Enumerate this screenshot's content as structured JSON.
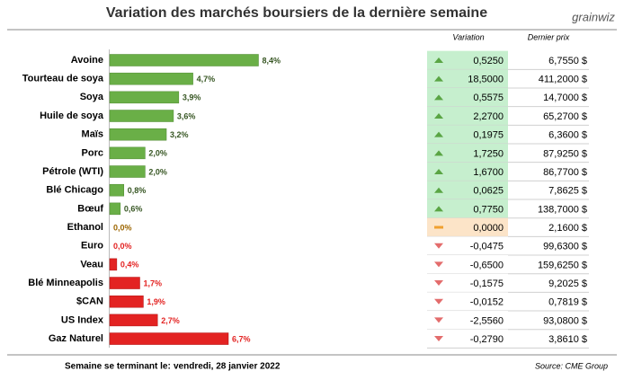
{
  "chart_data": {
    "type": "bar",
    "title": "Variation des marchés boursiers de la dernière semaine",
    "logo": "grainwiz",
    "categories": [
      "Avoine",
      "Tourteau de soya",
      "Soya",
      "Huile de soya",
      "Maïs",
      "Porc",
      "Pétrole (WTI)",
      "Blé Chicago",
      "Bœuf",
      "Ethanol",
      "Euro",
      "Veau",
      "Blé Minneapolis",
      "$CAN",
      "US Index",
      "Gaz Naturel"
    ],
    "values": [
      8.4,
      4.7,
      3.9,
      3.6,
      3.2,
      2.0,
      2.0,
      0.8,
      0.6,
      0.0,
      0.0,
      0.4,
      1.7,
      1.9,
      2.7,
      6.7
    ],
    "value_labels": [
      "8,4%",
      "4,7%",
      "3,9%",
      "3,6%",
      "3,2%",
      "2,0%",
      "2,0%",
      "0,8%",
      "0,6%",
      "0,0%",
      "0,0%",
      "0,4%",
      "1,7%",
      "1,9%",
      "2,7%",
      "6,7%"
    ],
    "colors": [
      "#6aaf47",
      "#6aaf47",
      "#6aaf47",
      "#6aaf47",
      "#6aaf47",
      "#6aaf47",
      "#6aaf47",
      "#6aaf47",
      "#6aaf47",
      "#c9a55a",
      "#e32322",
      "#e32322",
      "#e32322",
      "#e32322",
      "#e32322",
      "#e32322"
    ],
    "table": {
      "headers": [
        "Variation",
        "Dernier prix"
      ],
      "rows": [
        [
          "0,5250",
          "6,7550 $"
        ],
        [
          "18,5000",
          "411,2000 $"
        ],
        [
          "0,5575",
          "14,7000 $"
        ],
        [
          "2,2700",
          "65,2700 $"
        ],
        [
          "0,1975",
          "6,3600 $"
        ],
        [
          "1,7250",
          "87,9250 $"
        ],
        [
          "1,6700",
          "86,7700 $"
        ],
        [
          "0,0625",
          "7,8625 $"
        ],
        [
          "0,7750",
          "138,7000 $"
        ],
        [
          "0,0000",
          "2,1600 $"
        ],
        [
          "-0,0475",
          "99,6300 $"
        ],
        [
          "-0,6500",
          "159,6250 $"
        ],
        [
          "-0,1575",
          "9,2025 $"
        ],
        [
          "-0,0152",
          "0,7819 $"
        ],
        [
          "-2,5560",
          "93,0800 $"
        ],
        [
          "-0,2790",
          "3,8610 $"
        ]
      ]
    },
    "footer": {
      "label": "Semaine se terminant le:",
      "date": "vendredi, 28 janvier 2022",
      "source": "Source: CME Group"
    }
  }
}
